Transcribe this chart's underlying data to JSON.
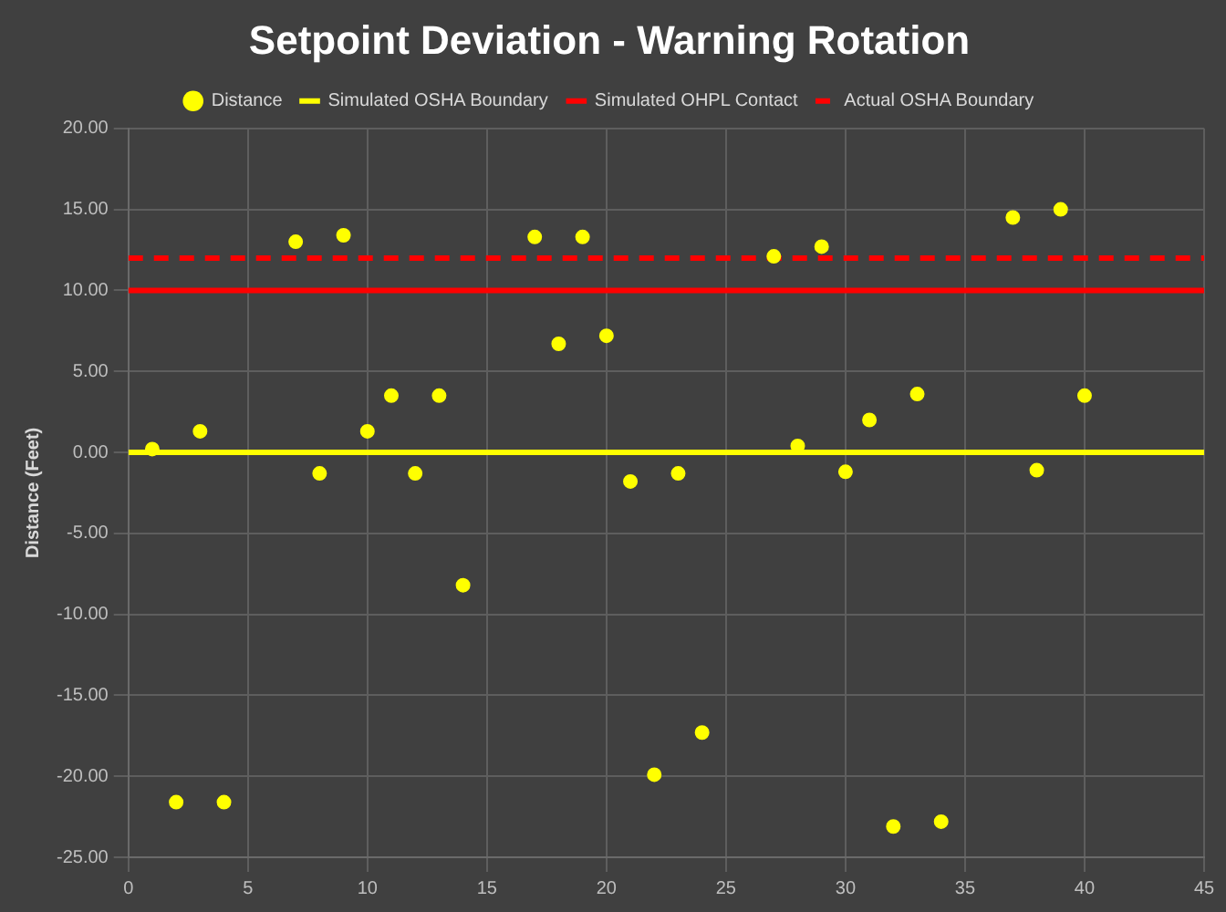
{
  "chart_data": {
    "type": "scatter",
    "title": "Setpoint Deviation - Warning Rotation",
    "ylabel": "Distance (Feet)",
    "series": [
      {
        "name": "Distance",
        "color": "#ffff00",
        "marker": "circle",
        "x": [
          1,
          2,
          3,
          4,
          7,
          8,
          9,
          10,
          11,
          12,
          13,
          14,
          17,
          18,
          19,
          20,
          21,
          22,
          23,
          24,
          27,
          28,
          29,
          30,
          31,
          32,
          33,
          34,
          37,
          38,
          39,
          40
        ],
        "values": [
          0.2,
          -21.6,
          1.3,
          -21.6,
          13.0,
          -1.3,
          13.4,
          1.3,
          3.5,
          -1.3,
          3.5,
          -8.2,
          13.3,
          6.7,
          13.3,
          7.2,
          -1.8,
          -19.9,
          -1.3,
          -17.3,
          12.1,
          0.4,
          12.7,
          -1.2,
          2.0,
          -23.1,
          3.6,
          -22.8,
          14.5,
          -1.1,
          15.0,
          3.5
        ]
      },
      {
        "name": "Simulated OSHA Boundary",
        "color": "#ffff00",
        "type": "line",
        "line_style": "solid",
        "x": [
          0,
          45
        ],
        "values": [
          0,
          0
        ]
      },
      {
        "name": "Simulated OHPL Contact",
        "color": "#ff0000",
        "type": "line",
        "line_style": "solid",
        "x": [
          0,
          45
        ],
        "values": [
          10,
          10
        ]
      },
      {
        "name": "Actual OSHA Boundary",
        "color": "#ff0000",
        "type": "line",
        "line_style": "dashed",
        "x": [
          0,
          45
        ],
        "values": [
          12,
          12
        ]
      }
    ],
    "xlim": [
      0,
      45
    ],
    "xticks": [
      0,
      5,
      10,
      15,
      20,
      25,
      30,
      35,
      40,
      45
    ],
    "ylim": [
      -25,
      20
    ],
    "yticks": [
      {
        "value": -25,
        "label": "-25.00"
      },
      {
        "value": -20,
        "label": "-20.00"
      },
      {
        "value": -15,
        "label": "-15.00"
      },
      {
        "value": -10,
        "label": "-10.00"
      },
      {
        "value": -5,
        "label": "-5.00"
      },
      {
        "value": 0,
        "label": "0.00"
      },
      {
        "value": 5,
        "label": "5.00"
      },
      {
        "value": 10,
        "label": "10.00"
      },
      {
        "value": 15,
        "label": "15.00"
      },
      {
        "value": 20,
        "label": "20.00"
      }
    ],
    "grid": true,
    "legend": "top"
  }
}
